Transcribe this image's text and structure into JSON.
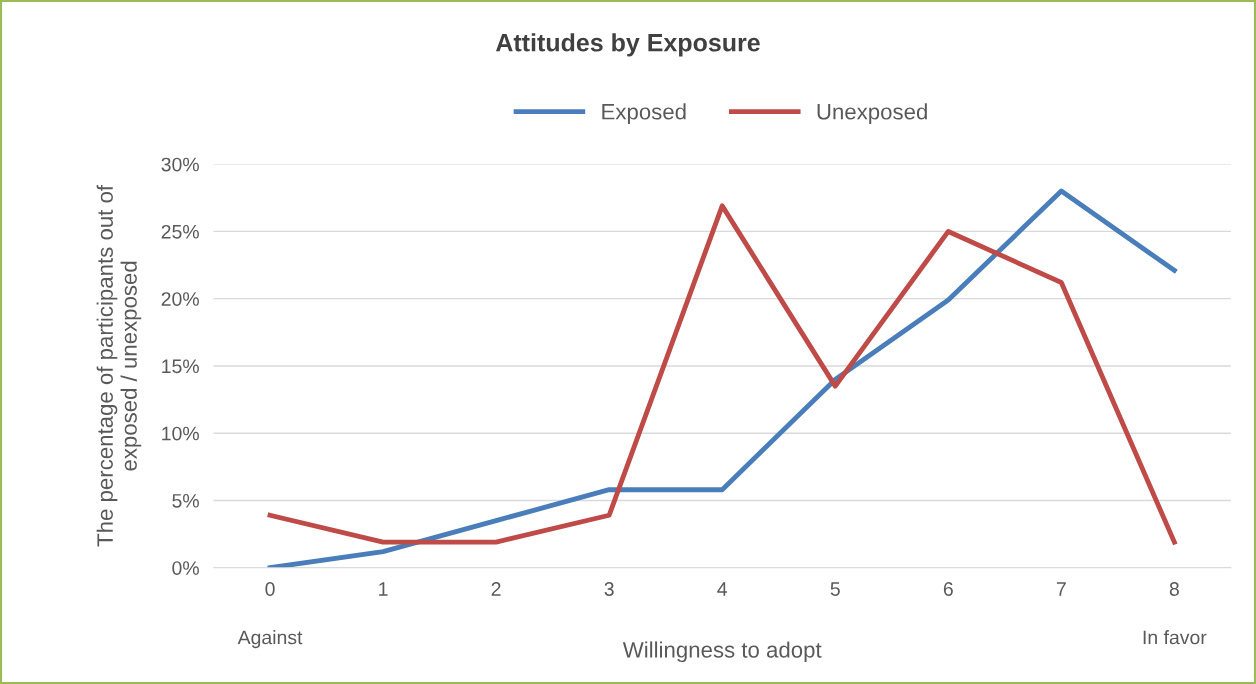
{
  "chart_data": {
    "type": "line",
    "title": "Attitudes by Exposure",
    "xlabel": "Willingness to adopt",
    "ylabel": "The percentage of participants out of\nexposed / unexposed",
    "categories": [
      "0",
      "1",
      "2",
      "3",
      "4",
      "5",
      "6",
      "7",
      "8"
    ],
    "series": [
      {
        "name": "Exposed",
        "color": "#4a7ebb",
        "values": [
          0,
          1.2,
          3.5,
          5.8,
          5.8,
          14.0,
          19.9,
          28.0,
          22.1
        ]
      },
      {
        "name": "Unexposed",
        "color": "#be4b48",
        "values": [
          3.9,
          1.9,
          1.9,
          3.9,
          26.9,
          13.5,
          25.0,
          21.2,
          1.9
        ]
      }
    ],
    "ylim": [
      0,
      30
    ],
    "yticks": [
      {
        "value": 0,
        "label": "0%"
      },
      {
        "value": 5,
        "label": "5%"
      },
      {
        "value": 10,
        "label": "10%"
      },
      {
        "value": 15,
        "label": "15%"
      },
      {
        "value": 20,
        "label": "20%"
      },
      {
        "value": 25,
        "label": "25%"
      },
      {
        "value": 30,
        "label": "30%"
      }
    ],
    "grid": "y",
    "legend": "top",
    "marker": "none",
    "line_style": "solid",
    "annotations": [
      "Against",
      "In favor"
    ]
  }
}
